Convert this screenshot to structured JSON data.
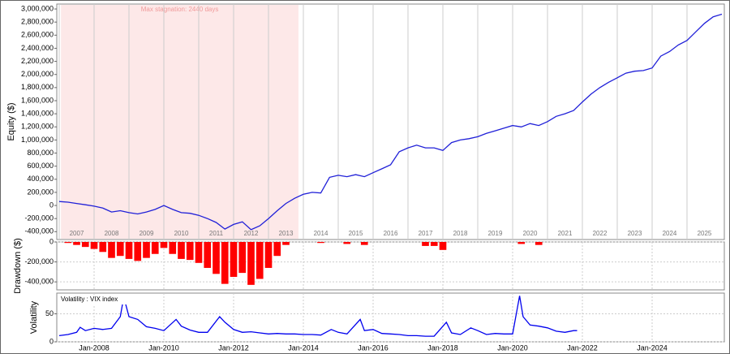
{
  "chart_data": [
    {
      "type": "line",
      "ylabel": "Equity ($)",
      "color": "#2020d8",
      "xlim": [
        2006.93,
        2026.07
      ],
      "ylim": [
        -520000,
        3075000
      ],
      "yticks": [
        {
          "value": -400000,
          "label": "-400,000"
        },
        {
          "value": -200000,
          "label": "-200,000"
        },
        0,
        {
          "value": 200000,
          "label": "200,000"
        },
        {
          "value": 400000,
          "label": "400,000"
        },
        {
          "value": 600000,
          "label": "600,000"
        },
        {
          "value": 800000,
          "label": "800,000"
        },
        {
          "value": 1000000,
          "label": "1,000,000"
        },
        {
          "value": 1200000,
          "label": "1,200,000"
        },
        {
          "value": 1400000,
          "label": "1,400,000"
        },
        {
          "value": 1600000,
          "label": "1,600,000"
        },
        {
          "value": 1800000,
          "label": "1,800,000"
        },
        {
          "value": 2000000,
          "label": "2,000,000"
        },
        {
          "value": 2200000,
          "label": "2,200,000"
        },
        {
          "value": 2400000,
          "label": "2,400,000"
        },
        {
          "value": 2600000,
          "label": "2,600,000"
        },
        {
          "value": 2800000,
          "label": "2,800,000"
        },
        {
          "value": 3000000,
          "label": "3,000,000"
        }
      ],
      "year_bands": [
        2007,
        2008,
        2009,
        2010,
        2011,
        2012,
        2013,
        2014,
        2015,
        2016,
        2017,
        2018,
        2019,
        2020,
        2021,
        2022,
        2023,
        2024,
        2025
      ],
      "stagnation": {
        "start": 2007.05,
        "end": 2013.86,
        "label": "Max stagnation: 2440 days",
        "color": "#fde8e8"
      },
      "x": [
        2007,
        2007.25,
        2007.5,
        2007.75,
        2008,
        2008.25,
        2008.5,
        2008.75,
        2009,
        2009.25,
        2009.5,
        2009.75,
        2010,
        2010.25,
        2010.5,
        2010.75,
        2011,
        2011.25,
        2011.5,
        2011.75,
        2012,
        2012.25,
        2012.5,
        2012.75,
        2013,
        2013.25,
        2013.5,
        2013.75,
        2014,
        2014.25,
        2014.5,
        2014.75,
        2015,
        2015.25,
        2015.5,
        2015.75,
        2016,
        2016.25,
        2016.5,
        2016.75,
        2017,
        2017.25,
        2017.5,
        2017.75,
        2018,
        2018.25,
        2018.5,
        2018.75,
        2019,
        2019.25,
        2019.5,
        2019.75,
        2020,
        2020.25,
        2020.5,
        2020.75,
        2021,
        2021.25,
        2021.5,
        2021.75,
        2022,
        2022.25,
        2022.5,
        2022.75,
        2023,
        2023.25,
        2023.5,
        2023.75,
        2024,
        2024.25,
        2024.5,
        2024.75,
        2025,
        2025.25,
        2025.5,
        2025.75,
        2026
      ],
      "values": [
        60000,
        50000,
        30000,
        10000,
        -10000,
        -40000,
        -100000,
        -80000,
        -110000,
        -130000,
        -100000,
        -60000,
        0,
        -60000,
        -110000,
        -120000,
        -150000,
        -200000,
        -260000,
        -360000,
        -290000,
        -250000,
        -370000,
        -310000,
        -200000,
        -80000,
        30000,
        110000,
        170000,
        200000,
        190000,
        430000,
        460000,
        440000,
        470000,
        440000,
        500000,
        560000,
        620000,
        820000,
        880000,
        920000,
        880000,
        880000,
        840000,
        960000,
        1000000,
        1020000,
        1050000,
        1100000,
        1140000,
        1180000,
        1220000,
        1200000,
        1250000,
        1220000,
        1280000,
        1360000,
        1400000,
        1450000,
        1580000,
        1700000,
        1800000,
        1880000,
        1950000,
        2020000,
        2050000,
        2060000,
        2100000,
        2280000,
        2350000,
        2450000,
        2520000,
        2650000,
        2780000,
        2880000,
        2920000
      ]
    },
    {
      "type": "bar",
      "ylabel": "Drawdown ($)",
      "color": "#ff0000",
      "grid": true,
      "xlim": [
        2006.93,
        2026.07
      ],
      "ylim": [
        -480000,
        0
      ],
      "yticks": [
        {
          "value": -400000,
          "label": "-400,000"
        },
        {
          "value": -200000,
          "label": "-200,000"
        },
        0
      ],
      "xticks": [
        2008,
        2010,
        2012,
        2014,
        2016,
        2018,
        2020,
        2022,
        2024
      ],
      "x": [
        2007,
        2007.25,
        2007.5,
        2007.75,
        2008,
        2008.25,
        2008.5,
        2008.75,
        2009,
        2009.25,
        2009.5,
        2009.75,
        2010,
        2010.25,
        2010.5,
        2010.75,
        2011,
        2011.25,
        2011.5,
        2011.75,
        2012,
        2012.25,
        2012.5,
        2012.75,
        2013,
        2013.25,
        2013.5,
        2013.75,
        2014,
        2014.25,
        2014.5,
        2014.75,
        2015,
        2015.25,
        2015.5,
        2015.75,
        2016,
        2016.25,
        2016.5,
        2016.75,
        2017,
        2017.25,
        2017.5,
        2017.75,
        2018,
        2018.25,
        2018.5,
        2018.75,
        2019,
        2019.25,
        2019.5,
        2019.75,
        2020,
        2020.25,
        2020.5,
        2020.75,
        2021,
        2021.25,
        2021.5,
        2021.75,
        2022,
        2022.25,
        2022.5,
        2022.75,
        2023,
        2023.25,
        2023.5,
        2023.75,
        2024,
        2024.25,
        2024.5,
        2024.75,
        2025,
        2025.25,
        2025.5,
        2025.75
      ],
      "values": [
        0,
        -10000,
        -30000,
        -50000,
        -70000,
        -100000,
        -160000,
        -140000,
        -170000,
        -190000,
        -160000,
        -120000,
        -60000,
        -120000,
        -170000,
        -180000,
        -210000,
        -260000,
        -320000,
        -420000,
        -350000,
        -310000,
        -430000,
        -370000,
        -260000,
        -140000,
        -30000,
        0,
        0,
        0,
        -10000,
        0,
        0,
        -20000,
        0,
        -30000,
        0,
        0,
        0,
        0,
        0,
        0,
        -40000,
        -40000,
        -80000,
        0,
        0,
        0,
        0,
        0,
        0,
        0,
        0,
        -20000,
        0,
        -30000,
        0,
        0,
        0,
        0,
        0,
        0,
        0,
        0,
        0,
        0,
        0,
        0,
        0,
        0,
        0,
        0,
        0,
        0,
        0,
        0
      ]
    },
    {
      "type": "line",
      "ylabel": "Volatility",
      "title": "Volatility : VIX index",
      "color": "#0000ee",
      "grid": true,
      "xlim": [
        2006.93,
        2026.07
      ],
      "ylim": [
        0,
        87
      ],
      "yticks": [
        0,
        50
      ],
      "xticks": [
        {
          "value": 2008,
          "label": "Jan-2008"
        },
        {
          "value": 2010,
          "label": "Jan-2010"
        },
        {
          "value": 2012,
          "label": "Jan-2012"
        },
        {
          "value": 2014,
          "label": "Jan-2014"
        },
        {
          "value": 2016,
          "label": "Jan-2016"
        },
        {
          "value": 2018,
          "label": "Jan-2018"
        },
        {
          "value": 2020,
          "label": "Jan-2020"
        },
        {
          "value": 2022,
          "label": "Jan-2022"
        },
        {
          "value": 2024,
          "label": "Jan-2024"
        }
      ],
      "x": [
        2007,
        2007.25,
        2007.5,
        2007.6,
        2007.75,
        2008,
        2008.25,
        2008.5,
        2008.75,
        2008.85,
        2009,
        2009.25,
        2009.5,
        2009.75,
        2010,
        2010.35,
        2010.5,
        2010.75,
        2011,
        2011.25,
        2011.6,
        2011.75,
        2012,
        2012.25,
        2012.5,
        2012.75,
        2013,
        2013.25,
        2013.5,
        2013.75,
        2014,
        2014.25,
        2014.5,
        2014.8,
        2015,
        2015.25,
        2015.63,
        2015.75,
        2016,
        2016.25,
        2016.5,
        2016.75,
        2017,
        2017.25,
        2017.5,
        2017.75,
        2018.1,
        2018.25,
        2018.5,
        2018.8,
        2019,
        2019.25,
        2019.5,
        2019.75,
        2020,
        2020.2,
        2020.3,
        2020.5,
        2020.75,
        2021,
        2021.25,
        2021.5,
        2021.75,
        2021.85
      ],
      "values": [
        11,
        13,
        17,
        26,
        20,
        24,
        22,
        24,
        45,
        80,
        45,
        40,
        27,
        24,
        20,
        40,
        28,
        21,
        17,
        17,
        45,
        35,
        22,
        17,
        18,
        16,
        14,
        15,
        14,
        14,
        13,
        13,
        12,
        22,
        17,
        14,
        40,
        20,
        22,
        15,
        14,
        13,
        11,
        11,
        10,
        10,
        35,
        16,
        13,
        25,
        20,
        13,
        15,
        14,
        14,
        82,
        45,
        30,
        28,
        25,
        19,
        17,
        20,
        20
      ]
    }
  ]
}
